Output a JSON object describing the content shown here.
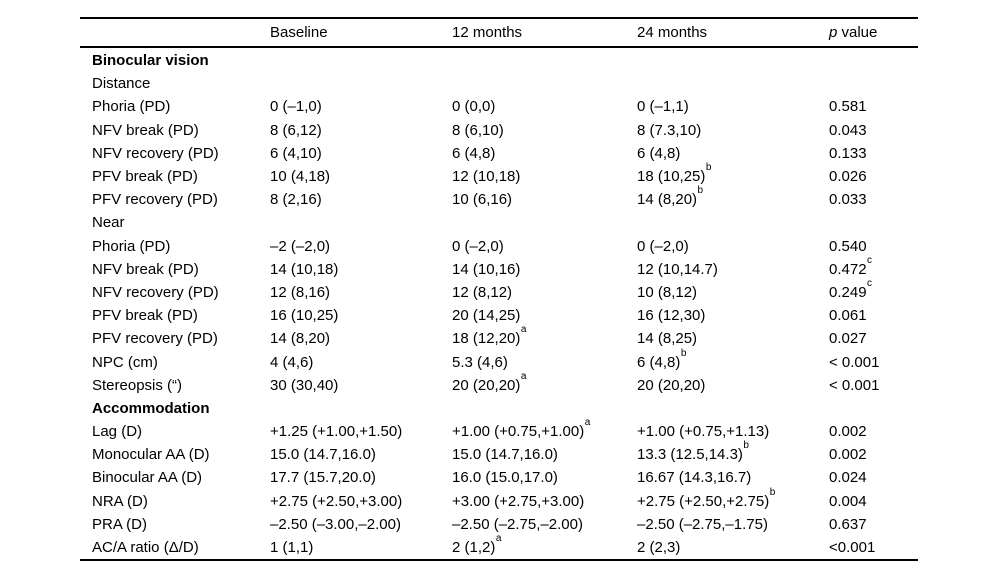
{
  "header": {
    "label_col": "",
    "baseline": "Baseline",
    "m12": "12 months",
    "m24": "24 months",
    "p_italic": "p",
    "p_rest": " value"
  },
  "table": {
    "rows": [
      {
        "label": "Binocular vision",
        "bold": true,
        "cells": []
      },
      {
        "label": "Distance",
        "bold": false,
        "cells": []
      },
      {
        "label": "Phoria (PD)",
        "bold": false,
        "cells": [
          {
            "t": "0 (–1,0)"
          },
          {
            "t": "0 (0,0)"
          },
          {
            "t": "0 (–1,1)"
          },
          {
            "t": "0.581"
          }
        ]
      },
      {
        "label": "NFV break (PD)",
        "bold": false,
        "cells": [
          {
            "t": "8 (6,12)"
          },
          {
            "t": "8 (6,10)"
          },
          {
            "t": "8 (7.3,10)"
          },
          {
            "t": "0.043"
          }
        ]
      },
      {
        "label": "NFV recovery (PD)",
        "bold": false,
        "cells": [
          {
            "t": "6 (4,10)"
          },
          {
            "t": "6 (4,8)"
          },
          {
            "t": "6 (4,8)"
          },
          {
            "t": "0.133"
          }
        ]
      },
      {
        "label": "PFV break (PD)",
        "bold": false,
        "cells": [
          {
            "t": "10 (4,18)"
          },
          {
            "t": "12 (10,18)"
          },
          {
            "t": "18 (10,25)",
            "sup": "b"
          },
          {
            "t": "0.026"
          }
        ]
      },
      {
        "label": "PFV recovery (PD)",
        "bold": false,
        "cells": [
          {
            "t": "8 (2,16)"
          },
          {
            "t": "10 (6,16)"
          },
          {
            "t": "14 (8,20)",
            "sup": "b"
          },
          {
            "t": "0.033"
          }
        ]
      },
      {
        "label": "Near",
        "bold": false,
        "cells": []
      },
      {
        "label": "Phoria (PD)",
        "bold": false,
        "cells": [
          {
            "t": "–2 (–2,0)"
          },
          {
            "t": "0 (–2,0)"
          },
          {
            "t": "0 (–2,0)"
          },
          {
            "t": "0.540"
          }
        ]
      },
      {
        "label": "NFV break (PD)",
        "bold": false,
        "cells": [
          {
            "t": "14 (10,18)"
          },
          {
            "t": "14 (10,16)"
          },
          {
            "t": "12 (10,14.7)"
          },
          {
            "t": "0.472",
            "sup": "c"
          }
        ]
      },
      {
        "label": "NFV recovery (PD)",
        "bold": false,
        "cells": [
          {
            "t": "12 (8,16)"
          },
          {
            "t": "12 (8,12)"
          },
          {
            "t": "10 (8,12)"
          },
          {
            "t": "0.249",
            "sup": "c"
          }
        ]
      },
      {
        "label": "PFV break (PD)",
        "bold": false,
        "cells": [
          {
            "t": "16 (10,25)"
          },
          {
            "t": "20 (14,25)"
          },
          {
            "t": "16 (12,30)"
          },
          {
            "t": "0.061"
          }
        ]
      },
      {
        "label": "PFV recovery (PD)",
        "bold": false,
        "cells": [
          {
            "t": "14 (8,20)"
          },
          {
            "t": "18 (12,20)",
            "sup": "a"
          },
          {
            "t": "14 (8,25)"
          },
          {
            "t": "0.027"
          }
        ]
      },
      {
        "label": "NPC (cm)",
        "bold": false,
        "cells": [
          {
            "t": "4 (4,6)"
          },
          {
            "t": "5.3 (4,6)"
          },
          {
            "t": "6 (4,8)",
            "sup": "b"
          },
          {
            "t": "< 0.001"
          }
        ]
      },
      {
        "label": "Stereopsis (“)",
        "bold": false,
        "cells": [
          {
            "t": "30 (30,40)"
          },
          {
            "t": "20 (20,20)",
            "sup": "a"
          },
          {
            "t": "20 (20,20)"
          },
          {
            "t": "< 0.001"
          }
        ]
      },
      {
        "label": "Accommodation",
        "bold": true,
        "cells": []
      },
      {
        "label": "Lag (D)",
        "bold": false,
        "cells": [
          {
            "t": "+1.25 (+1.00,+1.50)"
          },
          {
            "t": "+1.00 (+0.75,+1.00)",
            "sup": "a"
          },
          {
            "t": "+1.00 (+0.75,+1.13)"
          },
          {
            "t": "0.002"
          }
        ]
      },
      {
        "label": "Monocular AA (D)",
        "bold": false,
        "cells": [
          {
            "t": "15.0 (14.7,16.0)"
          },
          {
            "t": "15.0 (14.7,16.0)"
          },
          {
            "t": "13.3 (12.5,14.3)",
            "sup": "b"
          },
          {
            "t": "0.002"
          }
        ]
      },
      {
        "label": "Binocular AA (D)",
        "bold": false,
        "cells": [
          {
            "t": "17.7 (15.7,20.0)"
          },
          {
            "t": "16.0 (15.0,17.0)"
          },
          {
            "t": "16.67 (14.3,16.7)"
          },
          {
            "t": "0.024"
          }
        ]
      },
      {
        "label": "NRA (D)",
        "bold": false,
        "cells": [
          {
            "t": "+2.75 (+2.50,+3.00)"
          },
          {
            "t": "+3.00 (+2.75,+3.00)"
          },
          {
            "t": "+2.75 (+2.50,+2.75)",
            "sup": "b"
          },
          {
            "t": "0.004"
          }
        ]
      },
      {
        "label": "PRA (D)",
        "bold": false,
        "cells": [
          {
            "t": "–2.50 (–3.00,–2.00)"
          },
          {
            "t": "–2.50 (–2.75,–2.00)"
          },
          {
            "t": "–2.50 (–2.75,–1.75)"
          },
          {
            "t": "0.637"
          }
        ]
      },
      {
        "label": "AC/A ratio (Δ/D)",
        "bold": false,
        "cells": [
          {
            "t": "1 (1,1)"
          },
          {
            "t": "2 (1,2)",
            "sup": "a"
          },
          {
            "t": "2 (2,3)"
          },
          {
            "t": "<0.001"
          }
        ]
      }
    ]
  }
}
